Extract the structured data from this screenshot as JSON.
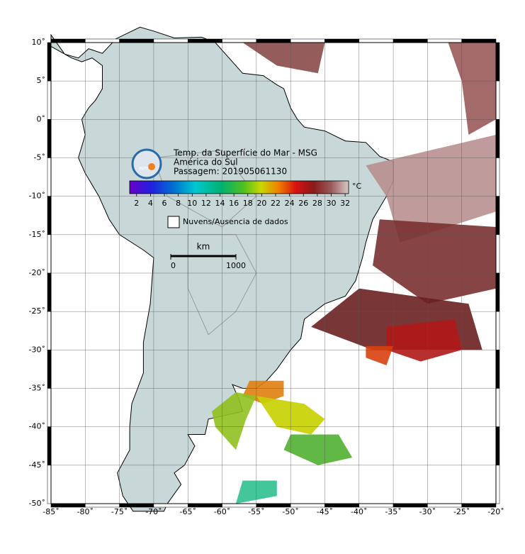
{
  "header": {
    "title": "Temp. da Superfície do Mar - MSG",
    "region": "América do Sul",
    "pass": "Passagem: 201905061130"
  },
  "logo": "INPE",
  "colorbar": {
    "unit": "°C",
    "range": [
      1,
      32.5
    ],
    "ticks": [
      2,
      4,
      6,
      8,
      10,
      12,
      14,
      16,
      18,
      20,
      22,
      24,
      26,
      28,
      30,
      32
    ]
  },
  "legend": {
    "label": "Nuvens/Ausencia de dados"
  },
  "scale": {
    "unit": "km",
    "range": [
      0,
      1000
    ],
    "ticks": [
      0,
      1000
    ]
  },
  "axes": {
    "xlim": [
      -85,
      -20
    ],
    "ylim": [
      -50,
      10
    ],
    "xticks": [
      {
        "value": -85,
        "label": "-85˚"
      },
      {
        "value": -80,
        "label": "-80˚"
      },
      {
        "value": -75,
        "label": "-75˚"
      },
      {
        "value": -70,
        "label": "-70˚"
      },
      {
        "value": -65,
        "label": "-65˚"
      },
      {
        "value": -60,
        "label": "-60˚"
      },
      {
        "value": -55,
        "label": "-55˚"
      },
      {
        "value": -50,
        "label": "-50˚"
      },
      {
        "value": -45,
        "label": "-45˚"
      },
      {
        "value": -40,
        "label": "-40˚"
      },
      {
        "value": -35,
        "label": "-35˚"
      },
      {
        "value": -30,
        "label": "-30˚"
      },
      {
        "value": -25,
        "label": "-25˚"
      },
      {
        "value": -20,
        "label": "-20˚"
      }
    ],
    "yticks": [
      {
        "value": 10,
        "label": "10˚"
      },
      {
        "value": 5,
        "label": "5˚"
      },
      {
        "value": 0,
        "label": "0˚"
      },
      {
        "value": -5,
        "label": "-5˚"
      },
      {
        "value": -10,
        "label": "-10˚"
      },
      {
        "value": -15,
        "label": "-15˚"
      },
      {
        "value": -20,
        "label": "-20˚"
      },
      {
        "value": -25,
        "label": "-25˚"
      },
      {
        "value": -30,
        "label": "-30˚"
      },
      {
        "value": -35,
        "label": "-35˚"
      },
      {
        "value": -40,
        "label": "-40˚"
      },
      {
        "value": -45,
        "label": "-45˚"
      },
      {
        "value": -50,
        "label": "-50˚"
      }
    ]
  }
}
